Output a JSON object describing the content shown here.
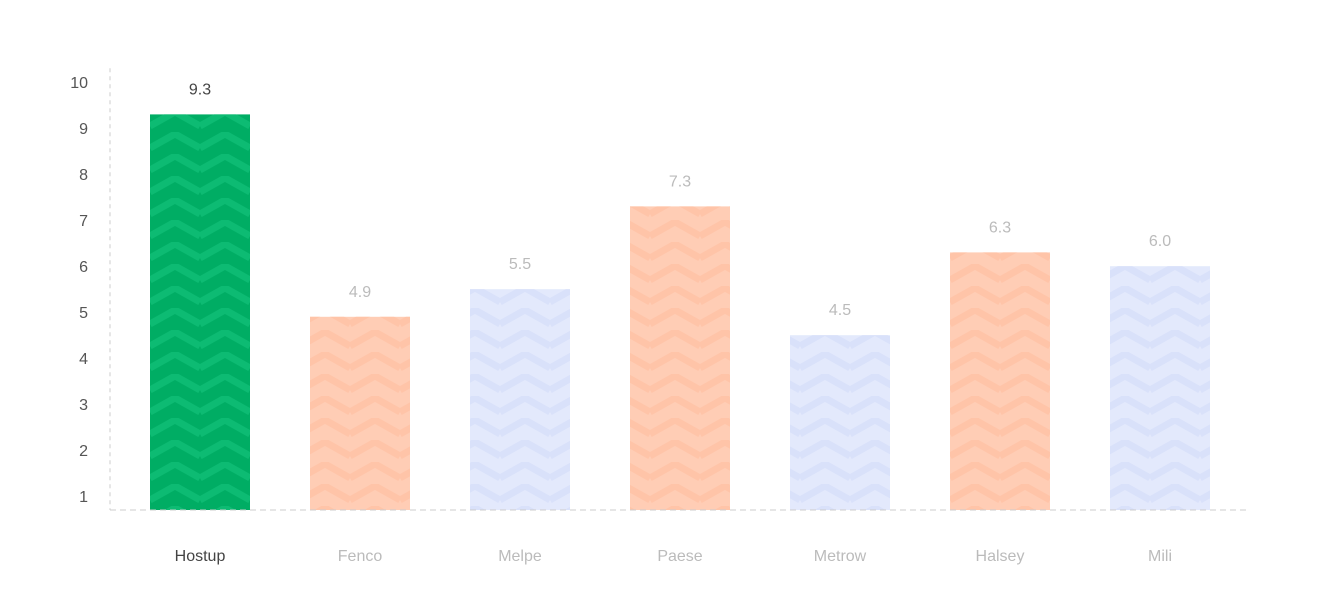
{
  "chart_data": {
    "type": "bar",
    "title": "",
    "xlabel": "",
    "ylabel": "",
    "ylim": [
      0.7,
      10
    ],
    "yticks": [
      1,
      2,
      3,
      4,
      5,
      6,
      7,
      8,
      9,
      10
    ],
    "grid": false,
    "legend": "none",
    "categories": [
      "Hostup",
      "Fenco",
      "Melpe",
      "Paese",
      "Metrow",
      "Halsey",
      "Mili"
    ],
    "values": [
      9.3,
      4.9,
      5.5,
      7.3,
      4.5,
      6.3,
      6.0
    ],
    "value_labels": [
      "9.3",
      "4.9",
      "5.5",
      "7.3",
      "4.5",
      "6.3",
      "6.0"
    ],
    "highlighted_index": 0,
    "colors": {
      "highlight": "#00AD64",
      "orange": "#FFCDB5",
      "blue": "#E3E9FC",
      "axis": "#CCCCCC",
      "label_active": "#444444",
      "label_muted": "#BBBBBB"
    },
    "bar_colors": [
      "#00AD64",
      "#FFCDB5",
      "#E3E9FC",
      "#FFCDB5",
      "#E3E9FC",
      "#FFCDB5",
      "#E3E9FC"
    ]
  }
}
